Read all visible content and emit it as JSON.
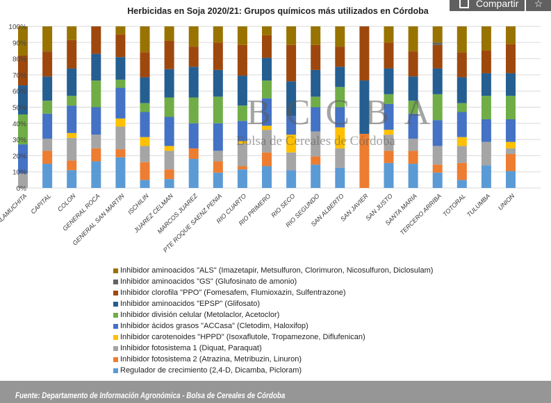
{
  "toolbar": {
    "share_label": "Compartir",
    "share_icon": "share-icon",
    "favorite_icon": "star-icon"
  },
  "watermark": {
    "logo_text": "BCCBA",
    "subtitle": "Bolsa de Cereales de Córdoba"
  },
  "footer": {
    "source": "Fuente: Departamento de Información Agronómica - Bolsa de Cereales de Córdoba"
  },
  "chart_data": {
    "type": "bar",
    "stacked": true,
    "normalized": true,
    "title": "Herbicidas en Soja 2020/21: Grupos químicos más utilizados en Córdoba",
    "xlabel": "",
    "ylabel": "",
    "ylim": [
      0,
      100
    ],
    "yticks": [
      "0%",
      "10%",
      "20%",
      "30%",
      "40%",
      "50%",
      "60%",
      "70%",
      "80%",
      "90%",
      "100%"
    ],
    "grid": true,
    "legend_position": "bottom",
    "categories": [
      "CALAMUCHITA",
      "CAPITAL",
      "COLON",
      "GENERAL ROCA",
      "GENERAL SAN MARTIN",
      "ISCHILIN",
      "JUAREZ CELMAN",
      "MARCOS JUAREZ",
      "PTE ROQUE SAENZ PENIA",
      "RIO CUARTO",
      "RIO PRIMERO",
      "RIO SECO",
      "RIO SEGUNDO",
      "SAN ALBERTO",
      "SAN JAVIER",
      "SAN JUSTO",
      "SANTA MARIA",
      "TERCERO ARRIBA",
      "TOTORAL",
      "TULUMBA",
      "UNION"
    ],
    "series": [
      {
        "name": "Regulador de crecimiento (2,4-D, Dicamba, Picloram)",
        "color": "#5b9bd5",
        "values": [
          0,
          15,
          11,
          16.5,
          19,
          5,
          5.5,
          18,
          9.5,
          11.5,
          13.5,
          11,
          14.5,
          12.5,
          0,
          15.5,
          15,
          9.5,
          5,
          14,
          10.5
        ]
      },
      {
        "name": "Inhibidor fotosistema 2 (Atrazina, Metribuzin, Linuron)",
        "color": "#ed7d31",
        "values": [
          0,
          8,
          6,
          8,
          5,
          11,
          6,
          6.5,
          7,
          2,
          8.5,
          0,
          5,
          0,
          33.5,
          7.5,
          8,
          5,
          10.5,
          0,
          10.5
        ]
      },
      {
        "name": "Inhibidor fotosistema 1 (Diquat, Paraquat)",
        "color": "#a5a5a5",
        "values": [
          9,
          7.5,
          14,
          8.5,
          14,
          10,
          11.5,
          0,
          6.5,
          14,
          14,
          11,
          15.5,
          12,
          0,
          10,
          7.5,
          11.5,
          10.5,
          14.5,
          3.5
        ]
      },
      {
        "name": "Inhibidor carotenoides \"HPPD\" (Isoxaflutole, Tropamezone, Diflufenican)",
        "color": "#ffc000",
        "values": [
          0,
          0,
          3,
          0,
          5,
          5.5,
          3,
          0,
          0,
          1.5,
          2.5,
          11,
          0,
          13,
          0,
          3,
          0,
          0,
          5.5,
          0,
          4
        ]
      },
      {
        "name": "Inhibidor ácidos grasos \"ACCasa\" (Cletodim, Haloxifop)",
        "color": "#4472c4",
        "values": [
          18,
          15.5,
          17,
          17,
          19,
          15.5,
          18,
          15.5,
          17,
          12.5,
          17,
          11.5,
          15,
          12.5,
          0,
          16,
          15.5,
          16,
          15.5,
          14,
          14
        ]
      },
      {
        "name": "Inhibidor división celular (Metolaclor, Acetoclor)",
        "color": "#70ad47",
        "values": [
          18.5,
          8,
          6,
          16.5,
          5,
          5.5,
          12,
          16,
          16.5,
          9.5,
          11,
          0,
          6.5,
          12.5,
          0,
          6,
          8,
          16,
          5.5,
          14.5,
          14.5
        ]
      },
      {
        "name": "Inhibidor aminoacidos \"EPSP\" (Glifosato)",
        "color": "#255e91",
        "values": [
          18,
          15,
          17,
          16.5,
          14,
          16,
          17.5,
          19,
          16.5,
          18.5,
          14,
          21.5,
          16.5,
          12.5,
          33,
          16,
          15,
          16,
          16,
          14,
          14
        ]
      },
      {
        "name": "Inhibidor clorofila \"PPO\" (Fomesafem, Flumioxazin, Sulfentrazone)",
        "color": "#9e480e",
        "values": [
          18.5,
          15.5,
          17.5,
          17,
          14,
          15.5,
          17.5,
          12.5,
          17,
          19,
          14,
          22.5,
          15.5,
          12.5,
          33.5,
          16,
          15.5,
          14.5,
          15.5,
          14,
          18
        ]
      },
      {
        "name": "Inhibidor aminoacidos \"GS\" (Glufosinato de amonio)",
        "color": "#636363",
        "values": [
          0,
          0,
          0,
          0,
          0,
          0,
          0,
          0,
          0,
          0,
          0,
          0,
          0,
          0,
          0,
          0,
          0,
          1.5,
          0,
          0,
          0
        ]
      },
      {
        "name": "Inhibidor aminoacidos \"ALS\" (Imazetapir, Metsulfuron, Clorimuron, Nicosulfuron, Diclosulam)",
        "color": "#997300",
        "values": [
          18,
          15.5,
          8.5,
          0,
          5,
          16,
          9,
          12.5,
          10,
          11.5,
          5.5,
          11.5,
          11.5,
          12.5,
          0,
          10,
          15.5,
          10,
          16,
          15,
          11
        ]
      }
    ]
  }
}
